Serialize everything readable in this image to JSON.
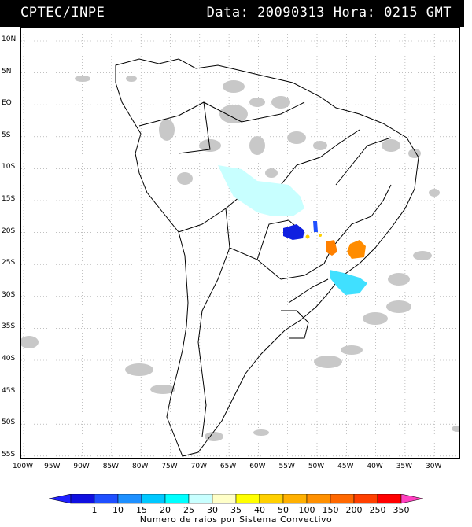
{
  "header": {
    "source": "CPTEC/INPE",
    "date_label": "Data: 20090313",
    "hour_label": "Hora: 0215 GMT"
  },
  "map": {
    "lat_labels": [
      "10N",
      "5N",
      "EQ",
      "5S",
      "10S",
      "15S",
      "20S",
      "25S",
      "30S",
      "35S",
      "40S",
      "45S",
      "50S",
      "55S"
    ],
    "lon_labels": [
      "100W",
      "95W",
      "90W",
      "85W",
      "80W",
      "75W",
      "70W",
      "65W",
      "60W",
      "55W",
      "50W",
      "45W",
      "40W",
      "35W",
      "30W"
    ],
    "cloud_color": "#c8c8c8",
    "border_color": "#000000",
    "grid_color": "#9a9a9a"
  },
  "colorbar": {
    "labels": [
      "1",
      "10",
      "15",
      "20",
      "25",
      "30",
      "35",
      "40",
      "50",
      "100",
      "150",
      "200",
      "250",
      "350"
    ],
    "colors": [
      "#1010e0",
      "#1f4fff",
      "#1e90ff",
      "#00c8ff",
      "#00ffff",
      "#c8ffff",
      "#ffffc8",
      "#ffff00",
      "#ffd000",
      "#ffb000",
      "#ff9000",
      "#ff6800",
      "#ff4000",
      "#ff0000"
    ],
    "end_left_color": "#2020ff",
    "end_right_color": "#ff40c0",
    "caption": "Numero de raios por Sistema Convectivo"
  }
}
